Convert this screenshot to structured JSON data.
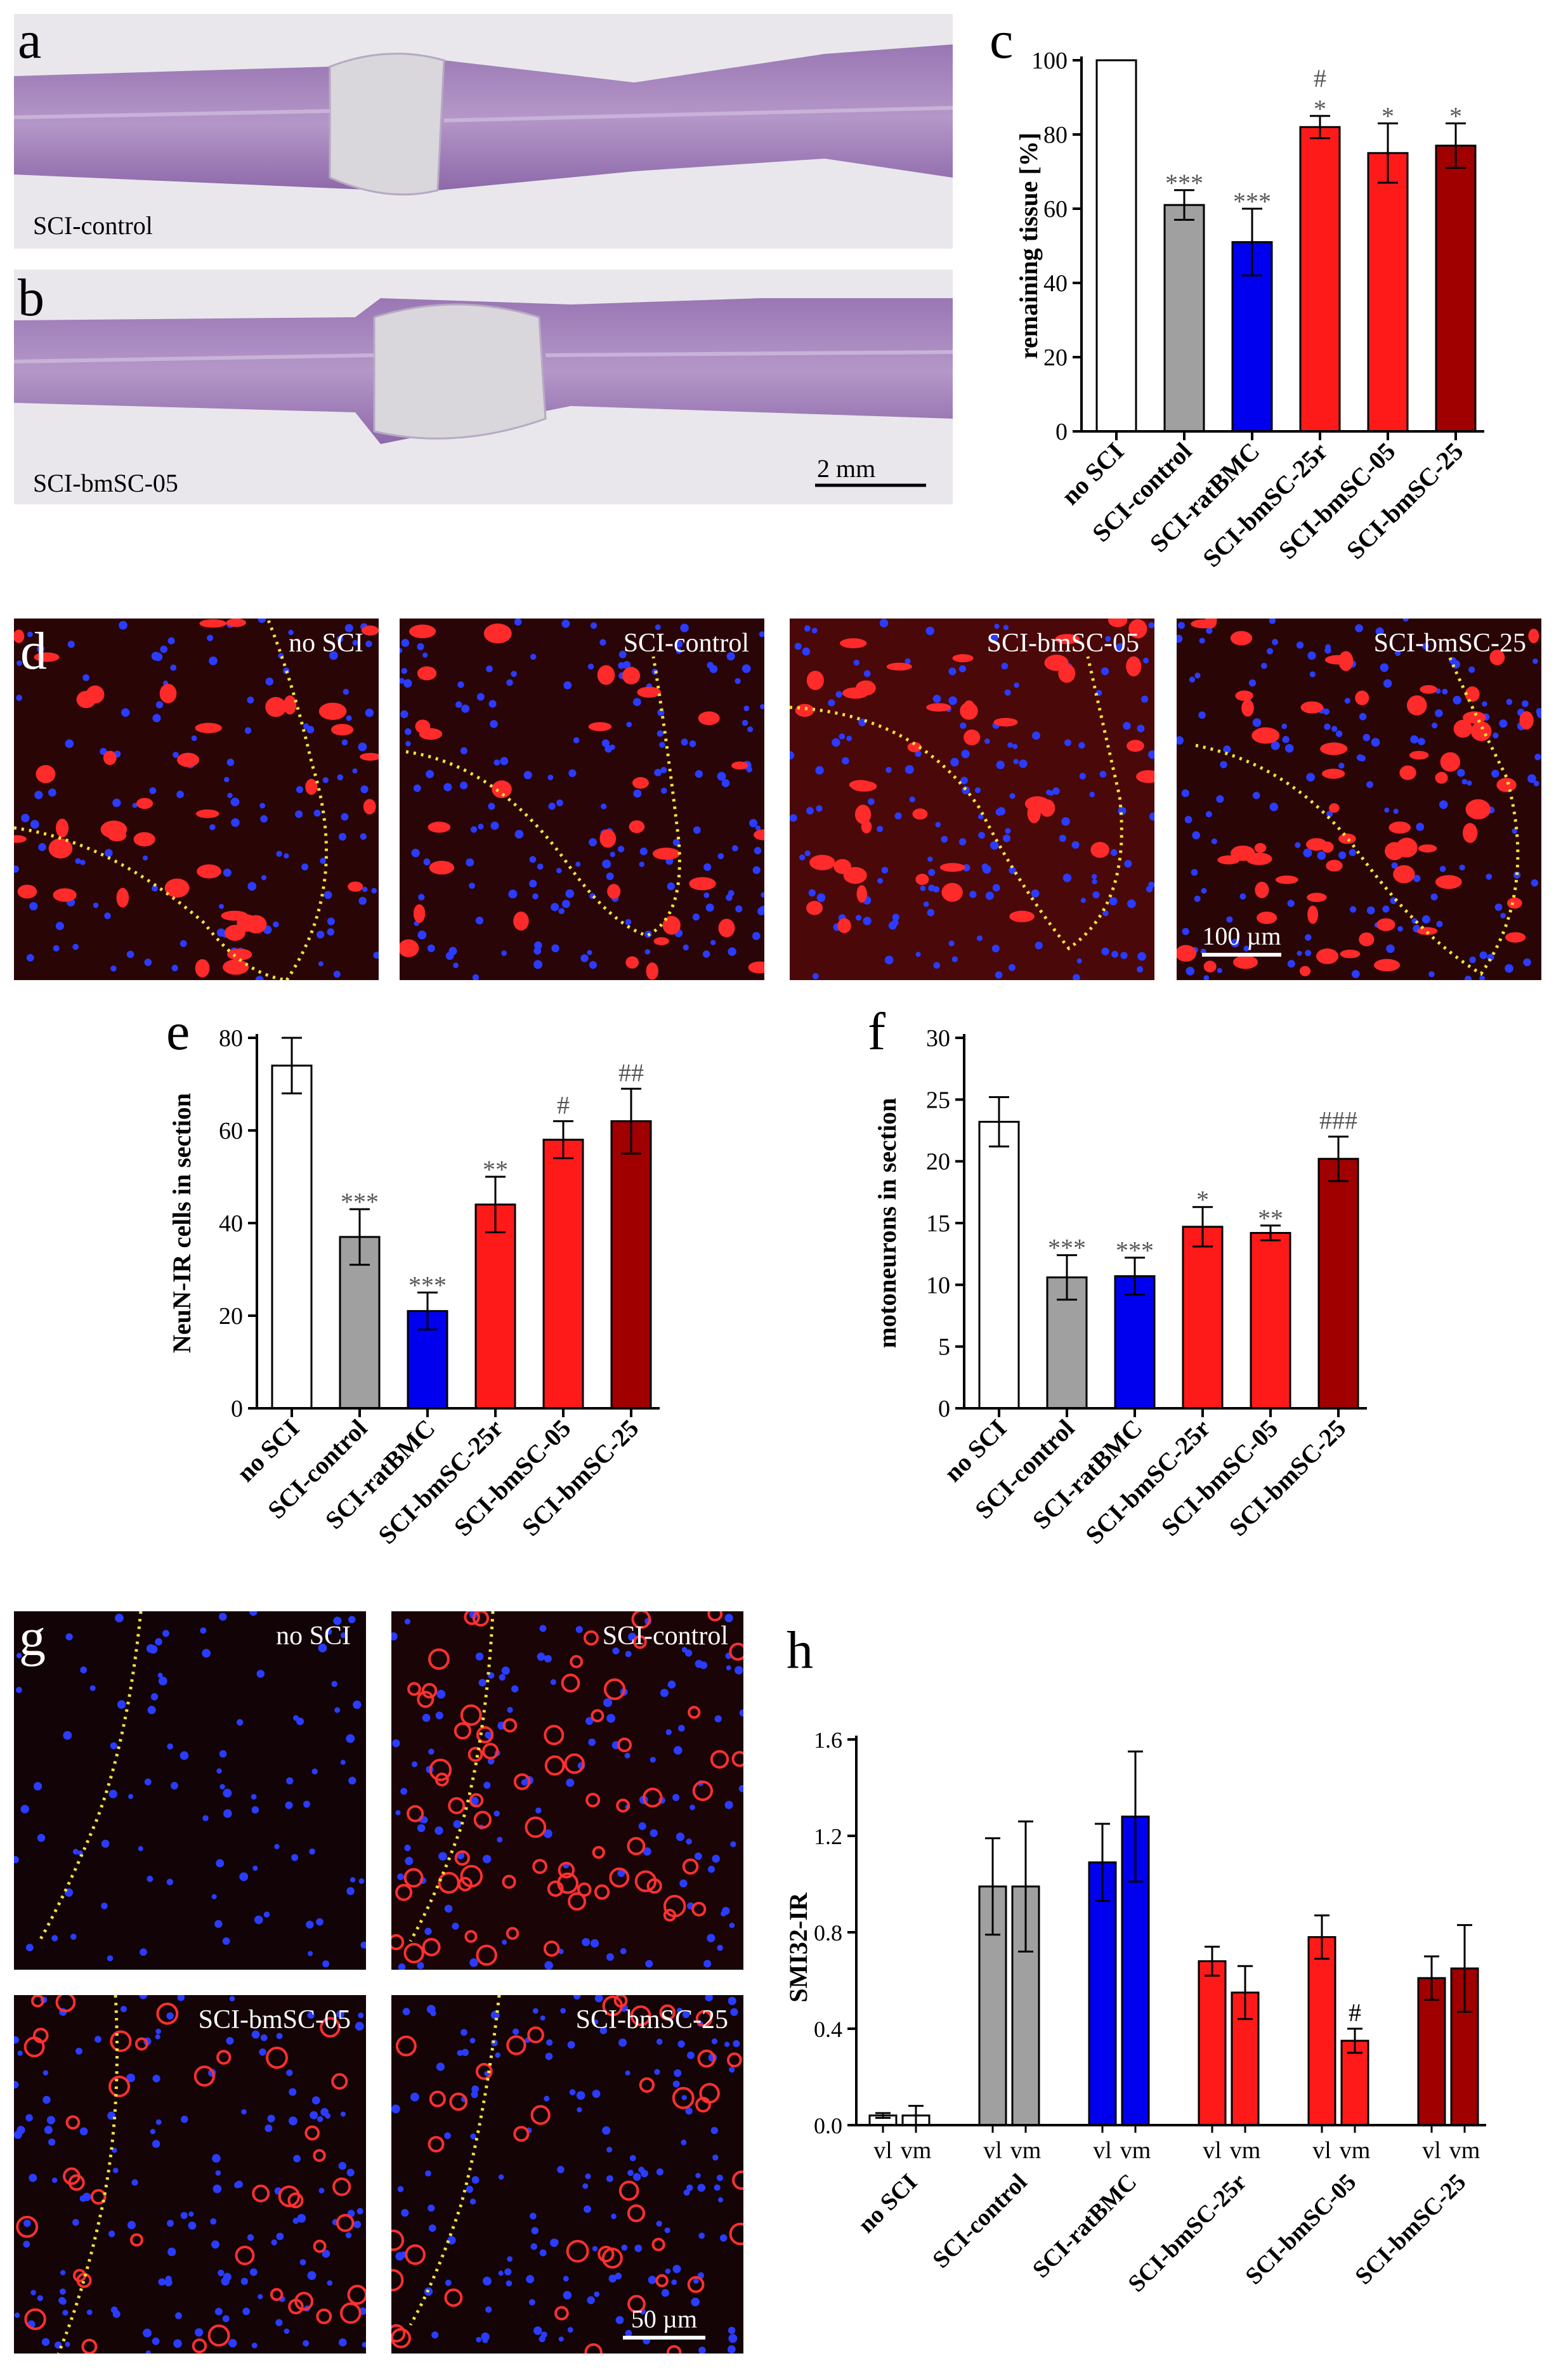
{
  "panel_letters": [
    "a",
    "b",
    "c",
    "d",
    "e",
    "f",
    "g",
    "h"
  ],
  "histology": {
    "a_label": "SCI-control",
    "b_label": "SCI-bmSC-05",
    "scale": "2 mm"
  },
  "micrographs_d": {
    "labels": [
      "no SCI",
      "SCI-control",
      "SCI-bmSC-05",
      "SCI-bmSC-25"
    ],
    "scale": "100 µm"
  },
  "micrographs_g": {
    "labels": [
      "no SCI",
      "SCI-control",
      "SCI-bmSC-05",
      "SCI-bmSC-25"
    ],
    "scale": "50 µm"
  },
  "colors": {
    "no_sci": "#ffffff",
    "control": "#a0a0a0",
    "ratbmc": "#0000ee",
    "bmsc25r": "#ff1a1a",
    "bmsc05": "#ff1a1a",
    "bmsc25": "#a00000"
  },
  "chart_data": [
    {
      "id": "c",
      "type": "bar",
      "categories": [
        "no SCI",
        "SCI-control",
        "SCI-ratBMC",
        "SCI-bmSC-25r",
        "SCI-bmSC-05",
        "SCI-bmSC-25"
      ],
      "values": [
        100,
        61,
        51,
        82,
        75,
        77
      ],
      "errors": [
        0,
        4,
        9,
        3,
        8,
        6
      ],
      "annotations": [
        "",
        "***",
        "***",
        "#\n*",
        "*",
        "*"
      ],
      "ylabel": "remaining tissue [%]",
      "ylim": [
        0,
        100
      ],
      "yticks": [
        0,
        20,
        40,
        60,
        80,
        100
      ]
    },
    {
      "id": "e",
      "type": "bar",
      "categories": [
        "no SCI",
        "SCI-control",
        "SCI-ratBMC",
        "SCI-bmSC-25r",
        "SCI-bmSC-05",
        "SCI-bmSC-25"
      ],
      "values": [
        74,
        37,
        21,
        44,
        58,
        62
      ],
      "errors": [
        6,
        6,
        4,
        6,
        4,
        7
      ],
      "annotations": [
        "",
        "***",
        "***",
        "**",
        "#",
        "##"
      ],
      "ylabel": "NeuN-IR cells in section",
      "ylim": [
        0,
        80
      ],
      "yticks": [
        0,
        20,
        40,
        60,
        80
      ]
    },
    {
      "id": "f",
      "type": "bar",
      "categories": [
        "no SCI",
        "SCI-control",
        "SCI-ratBMC",
        "SCI-bmSC-25r",
        "SCI-bmSC-05",
        "SCI-bmSC-25"
      ],
      "values": [
        23.2,
        10.6,
        10.7,
        14.7,
        14.2,
        20.2
      ],
      "errors": [
        2.0,
        1.8,
        1.5,
        1.6,
        0.6,
        1.8
      ],
      "annotations": [
        "",
        "***",
        "***",
        "*",
        "**",
        "###"
      ],
      "ylabel": "motoneurons in section",
      "ylim": [
        0,
        30
      ],
      "yticks": [
        0,
        5,
        10,
        15,
        20,
        25,
        30
      ]
    },
    {
      "id": "h",
      "type": "bar",
      "categories": [
        "no SCI",
        "SCI-control",
        "SCI-ratBMC",
        "SCI-bmSC-25r",
        "SCI-bmSC-05",
        "SCI-bmSC-25"
      ],
      "sublabels": [
        "vl",
        "vm"
      ],
      "series": [
        {
          "values": [
            0.04,
            0.99,
            1.09,
            0.68,
            0.78,
            0.61
          ],
          "errors": [
            0.01,
            0.2,
            0.16,
            0.06,
            0.09,
            0.09
          ]
        },
        {
          "values": [
            0.04,
            0.99,
            1.28,
            0.55,
            0.35,
            0.65
          ],
          "errors": [
            0.04,
            0.27,
            0.27,
            0.11,
            0.05,
            0.18
          ]
        }
      ],
      "annotations_vm": [
        "",
        "",
        "",
        "",
        "#",
        ""
      ],
      "ylabel": "SMI32-IR",
      "ylim": [
        0,
        1.6
      ],
      "yticks": [
        "0.0",
        "0.4",
        "0.8",
        "1.2",
        "1.6"
      ]
    }
  ]
}
